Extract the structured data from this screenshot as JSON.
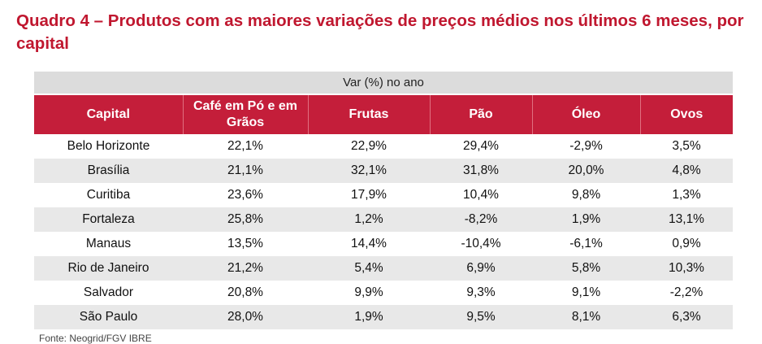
{
  "title": "Quadro 4 – Produtos com as maiores variações de preços médios nos últimos 6 meses, por capital",
  "table": {
    "super_header": "Var (%) no ano",
    "columns": [
      "Capital",
      "Café em Pó e em Grãos",
      "Frutas",
      "Pão",
      "Óleo",
      "Ovos"
    ],
    "rows": [
      [
        "Belo Horizonte",
        "22,1%",
        "22,9%",
        "29,4%",
        "-2,9%",
        "3,5%"
      ],
      [
        "Brasília",
        "21,1%",
        "32,1%",
        "31,8%",
        "20,0%",
        "4,8%"
      ],
      [
        "Curitiba",
        "23,6%",
        "17,9%",
        "10,4%",
        "9,8%",
        "1,3%"
      ],
      [
        "Fortaleza",
        "25,8%",
        "1,2%",
        "-8,2%",
        "1,9%",
        "13,1%"
      ],
      [
        "Manaus",
        "13,5%",
        "14,4%",
        "-10,4%",
        "-6,1%",
        "0,9%"
      ],
      [
        "Rio de Janeiro",
        "21,2%",
        "5,4%",
        "6,9%",
        "5,8%",
        "10,3%"
      ],
      [
        "Salvador",
        "20,8%",
        "9,9%",
        "9,3%",
        "9,1%",
        "-2,2%"
      ],
      [
        "São Paulo",
        "28,0%",
        "1,9%",
        "9,5%",
        "8,1%",
        "6,3%"
      ]
    ]
  },
  "footnote": "Fonte: Neogrid/FGV IBRE",
  "colors": {
    "title": "#c0172f",
    "header_bg": "#c41e3a",
    "super_header_bg": "#dcdcdc",
    "row_shade": "#e8e8e8"
  }
}
